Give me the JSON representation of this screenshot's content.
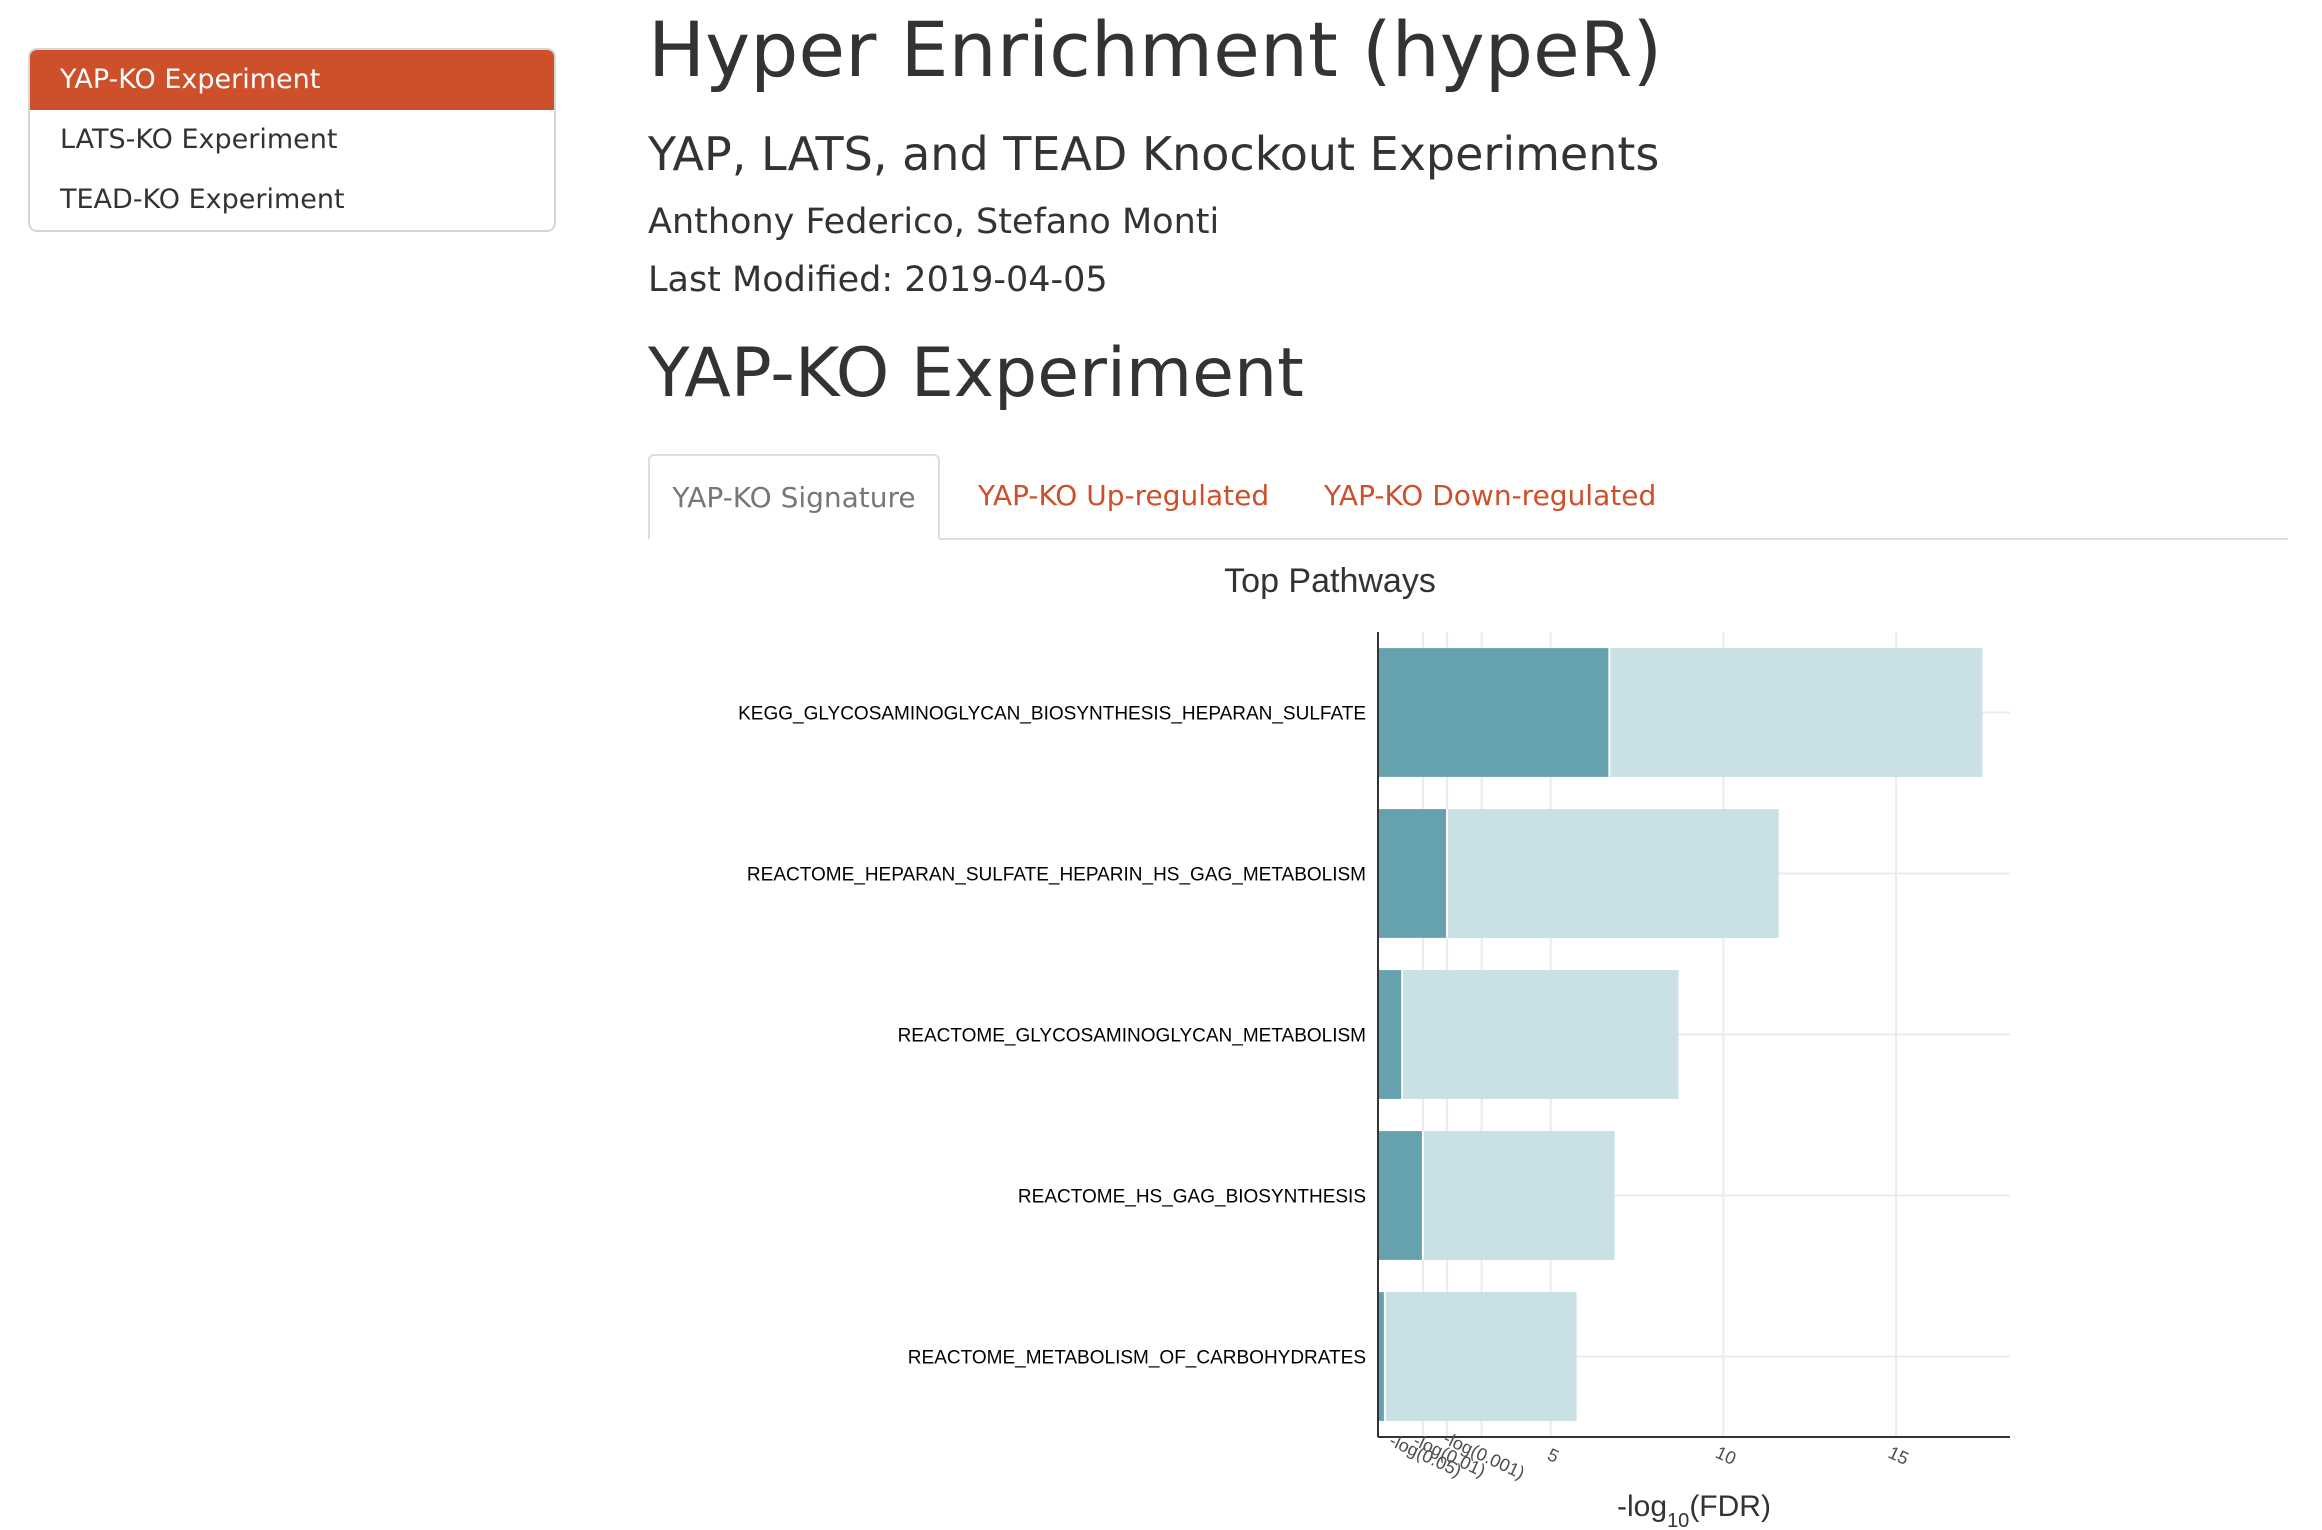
{
  "toc": {
    "items": [
      {
        "label": "YAP-KO Experiment",
        "active": true
      },
      {
        "label": "LATS-KO Experiment",
        "active": false
      },
      {
        "label": "TEAD-KO Experiment",
        "active": false
      }
    ]
  },
  "header": {
    "title": "Hyper Enrichment (hypeR)",
    "subtitle": "YAP, LATS, and TEAD Knockout Experiments",
    "author": "Anthony Federico, Stefano Monti",
    "date": "Last Modified: 2019-04-05"
  },
  "section": {
    "title": "YAP-KO Experiment"
  },
  "tabs": [
    {
      "label": "YAP-KO Signature",
      "active": true
    },
    {
      "label": "YAP-KO Up-regulated",
      "active": false
    },
    {
      "label": "YAP-KO Down-regulated",
      "active": false
    }
  ],
  "colors": {
    "accent": "#cd502a",
    "bar_dark": "#66a1ae",
    "bar_light": "#c9e0e4"
  },
  "chart_data": {
    "type": "bar",
    "orientation": "horizontal",
    "title": "Top Pathways",
    "xlabel": "-log",
    "xlabel_sub": "10",
    "xlabel_suffix": "(FDR)",
    "xlim": [
      0,
      18.3
    ],
    "categories": [
      "KEGG_GLYCOSAMINOGLYCAN_BIOSYNTHESIS_HEPARAN_SULFATE",
      "REACTOME_HEPARAN_SULFATE_HEPARIN_HS_GAG_METABOLISM",
      "REACTOME_GLYCOSAMINOGLYCAN_METABOLISM",
      "REACTOME_HS_GAG_BIOSYNTHESIS",
      "REACTOME_METABOLISM_OF_CARBOHYDRATES"
    ],
    "series": [
      {
        "values": [
          6.7,
          2.0,
          0.7,
          1.3,
          0.2
        ]
      },
      {
        "values": [
          17.5,
          11.6,
          8.7,
          6.85,
          5.75
        ]
      }
    ],
    "ticks": [
      {
        "value": 1.30103,
        "label": "-log(0.05)",
        "angle": 25
      },
      {
        "value": 2,
        "label": "-log(0.01)",
        "angle": 25
      },
      {
        "value": 3,
        "label": "-log(0.001)",
        "angle": 25
      },
      {
        "value": 5,
        "label": "5",
        "angle": 25
      },
      {
        "value": 10,
        "label": "10",
        "angle": 25
      },
      {
        "value": 15,
        "label": "15",
        "angle": 25
      }
    ],
    "grid": true
  }
}
